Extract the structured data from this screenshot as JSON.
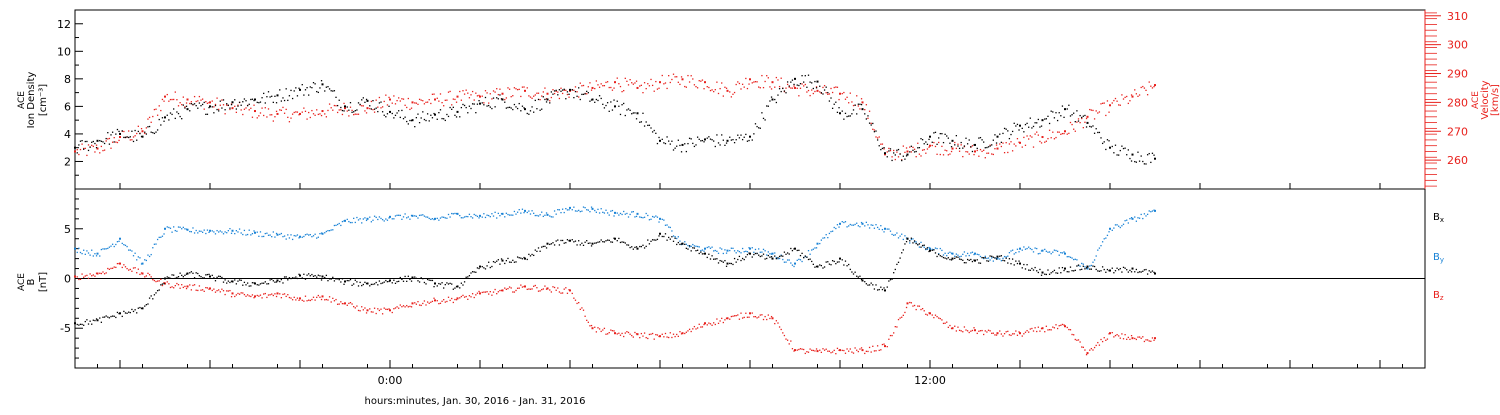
{
  "chart_data": [
    {
      "type": "scatter",
      "xlabel": "hours:minutes, Jan. 30, 2016 - Jan. 31, 2016",
      "x_unit": "hours relative to 0:00 Jan. 31, 2016",
      "xlim": [
        -7,
        23
      ],
      "x_ticks": [
        -6,
        -4,
        -2,
        0,
        2,
        4,
        6,
        8,
        10,
        12,
        14,
        16,
        18,
        20,
        22
      ],
      "x_tick_labels": [
        {
          "value": 0,
          "label": "0:00"
        },
        {
          "value": 12,
          "label": "12:00"
        }
      ],
      "grid": false,
      "left_axis": {
        "label_lines": [
          "ACE",
          "Ion Density",
          "[cm⁻³]"
        ],
        "ylim": [
          0,
          13
        ],
        "ticks": [
          2,
          4,
          6,
          8,
          10,
          12
        ],
        "color": "#000000"
      },
      "right_axis": {
        "label_lines": [
          "ACE",
          "Velocity",
          "[km/s]"
        ],
        "ylim": [
          250,
          312
        ],
        "ticks": [
          260,
          270,
          280,
          290,
          300,
          310
        ],
        "color": "#e8201c"
      },
      "series": [
        {
          "axis": "left",
          "color": "#000000",
          "x": [
            -7.0,
            -6.5,
            -6.0,
            -5.5,
            -5.0,
            -4.5,
            -4.0,
            -3.5,
            -3.0,
            -2.5,
            -2.0,
            -1.5,
            -1.0,
            -0.5,
            0.0,
            0.5,
            1.0,
            1.5,
            2.0,
            2.5,
            3.0,
            3.5,
            4.0,
            4.5,
            5.0,
            5.5,
            6.0,
            6.5,
            7.0,
            7.5,
            8.0,
            8.5,
            9.0,
            9.5,
            10.0,
            10.5,
            11.0,
            11.5,
            12.0,
            12.5,
            13.0,
            13.5,
            14.0,
            14.5,
            15.0,
            15.5,
            16.0,
            16.5,
            17.0
          ],
          "y": [
            3.0,
            3.5,
            4.0,
            3.8,
            5.2,
            5.8,
            6.0,
            6.3,
            6.5,
            6.8,
            7.2,
            7.6,
            6.0,
            6.4,
            5.6,
            5.0,
            5.4,
            5.6,
            6.2,
            6.5,
            5.8,
            6.5,
            7.2,
            6.5,
            6.0,
            5.5,
            3.5,
            3.2,
            3.6,
            3.5,
            3.8,
            6.5,
            8.0,
            7.8,
            5.5,
            5.8,
            2.6,
            2.5,
            3.8,
            3.5,
            3.2,
            3.8,
            4.6,
            5.0,
            5.8,
            4.8,
            3.0,
            2.5,
            2.2
          ]
        },
        {
          "axis": "right",
          "color": "#e8201c",
          "x": [
            -7.0,
            -6.5,
            -6.0,
            -5.5,
            -5.0,
            -4.5,
            -4.0,
            -3.5,
            -3.0,
            -2.5,
            -2.0,
            -1.5,
            -1.0,
            -0.5,
            0.0,
            0.5,
            1.0,
            1.5,
            2.0,
            2.5,
            3.0,
            3.5,
            4.0,
            4.5,
            5.0,
            5.5,
            6.0,
            6.5,
            7.0,
            7.5,
            8.0,
            8.5,
            9.0,
            9.5,
            10.0,
            10.5,
            11.0,
            11.5,
            12.0,
            12.5,
            13.0,
            13.5,
            14.0,
            14.5,
            15.0,
            15.5,
            16.0,
            16.5,
            17.0
          ],
          "y": [
            263,
            264,
            268,
            270,
            282,
            281,
            280,
            278,
            277,
            276,
            276,
            277,
            278,
            278,
            281,
            280,
            281,
            282,
            282,
            283,
            284,
            283,
            284,
            285,
            287,
            285,
            287,
            288,
            287,
            284,
            288,
            287,
            285,
            284,
            283,
            280,
            262,
            263,
            265,
            264,
            263,
            264,
            266,
            268,
            270,
            275,
            279,
            282,
            286
          ]
        }
      ]
    },
    {
      "type": "scatter",
      "ylabel_lines": [
        "ACE",
        "B",
        "[nT]"
      ],
      "ylim": [
        -9,
        9
      ],
      "y_ticks": [
        -5,
        0,
        5
      ],
      "x_unit": "hours relative to 0:00 Jan. 31, 2016",
      "xlim": [
        -7,
        23
      ],
      "zero_line": true,
      "grid": false,
      "legend_position": "right",
      "series": [
        {
          "name": "Bx",
          "color": "#000000",
          "x": [
            -7.0,
            -6.5,
            -6.0,
            -5.5,
            -5.0,
            -4.5,
            -4.0,
            -3.5,
            -3.0,
            -2.5,
            -2.0,
            -1.5,
            -1.0,
            -0.5,
            0.0,
            0.5,
            1.0,
            1.5,
            2.0,
            2.5,
            3.0,
            3.5,
            4.0,
            4.5,
            5.0,
            5.5,
            6.0,
            6.5,
            7.0,
            7.5,
            8.0,
            8.5,
            9.0,
            9.5,
            10.0,
            10.5,
            11.0,
            11.5,
            12.0,
            12.5,
            13.0,
            13.5,
            14.0,
            14.5,
            15.0,
            15.5,
            16.0,
            16.5,
            17.0
          ],
          "y": [
            -4.5,
            -4.2,
            -3.5,
            -3.0,
            0.0,
            0.5,
            0.2,
            -0.3,
            -0.5,
            -0.2,
            0.3,
            0.2,
            -0.3,
            -0.5,
            -0.2,
            0.1,
            -0.5,
            -0.8,
            1.2,
            1.8,
            2.0,
            3.5,
            3.8,
            3.5,
            4.0,
            3.0,
            4.5,
            3.5,
            2.5,
            1.5,
            2.5,
            2.0,
            3.0,
            1.2,
            2.0,
            -0.2,
            -1.2,
            4.0,
            2.8,
            2.0,
            1.8,
            2.2,
            1.5,
            0.6,
            1.0,
            1.2,
            0.8,
            1.0,
            0.5
          ]
        },
        {
          "name": "By",
          "color": "#1a83d6",
          "x": [
            -7.0,
            -6.5,
            -6.0,
            -5.5,
            -5.0,
            -4.5,
            -4.0,
            -3.5,
            -3.0,
            -2.5,
            -2.0,
            -1.5,
            -1.0,
            -0.5,
            0.0,
            0.5,
            1.0,
            1.5,
            2.0,
            2.5,
            3.0,
            3.5,
            4.0,
            4.5,
            5.0,
            5.5,
            6.0,
            6.5,
            7.0,
            7.5,
            8.0,
            8.5,
            9.0,
            9.5,
            10.0,
            10.5,
            11.0,
            11.5,
            12.0,
            12.5,
            13.0,
            13.5,
            14.0,
            14.5,
            15.0,
            15.5,
            16.0,
            16.5,
            17.0
          ],
          "y": [
            3.0,
            2.5,
            4.0,
            1.5,
            5.0,
            4.9,
            4.8,
            4.8,
            4.6,
            4.4,
            4.2,
            4.5,
            5.8,
            6.0,
            6.2,
            6.3,
            6.0,
            6.5,
            6.3,
            6.5,
            6.8,
            6.4,
            7.1,
            7.0,
            6.6,
            6.5,
            6.0,
            3.5,
            3.0,
            2.8,
            3.0,
            2.5,
            1.5,
            3.5,
            5.5,
            5.5,
            5.0,
            4.0,
            3.0,
            2.5,
            2.5,
            2.0,
            3.0,
            2.8,
            2.5,
            1.0,
            5.0,
            6.0,
            6.8
          ]
        },
        {
          "name": "Bz",
          "color": "#e8201c",
          "x": [
            -7.0,
            -6.5,
            -6.0,
            -5.5,
            -5.0,
            -4.5,
            -4.0,
            -3.5,
            -3.0,
            -2.5,
            -2.0,
            -1.5,
            -1.0,
            -0.5,
            0.0,
            0.5,
            1.0,
            1.5,
            2.0,
            2.5,
            3.0,
            3.5,
            4.0,
            4.5,
            5.0,
            5.5,
            6.0,
            6.5,
            7.0,
            7.5,
            8.0,
            8.5,
            9.0,
            9.5,
            10.0,
            10.5,
            11.0,
            11.5,
            12.0,
            12.5,
            13.0,
            13.5,
            14.0,
            14.5,
            15.0,
            15.5,
            16.0,
            16.5,
            17.0
          ],
          "y": [
            0.2,
            0.5,
            1.5,
            0.5,
            -0.5,
            -0.8,
            -1.0,
            -1.5,
            -1.8,
            -1.5,
            -2.0,
            -1.8,
            -2.5,
            -3.2,
            -3.2,
            -2.5,
            -2.2,
            -2.0,
            -1.5,
            -1.2,
            -0.8,
            -1.0,
            -1.2,
            -5.0,
            -5.5,
            -5.6,
            -5.8,
            -5.5,
            -4.5,
            -4.0,
            -3.5,
            -4.0,
            -7.2,
            -7.3,
            -7.2,
            -7.2,
            -6.8,
            -2.5,
            -3.5,
            -5.0,
            -5.2,
            -5.5,
            -5.5,
            -5.0,
            -4.8,
            -7.5,
            -5.5,
            -6.0,
            -6.0
          ]
        }
      ],
      "legend_labels": [
        {
          "letter": "B",
          "sub": "x",
          "color": "#000000"
        },
        {
          "letter": "B",
          "sub": "y",
          "color": "#1a83d6"
        },
        {
          "letter": "B",
          "sub": "z",
          "color": "#e8201c"
        }
      ]
    }
  ]
}
